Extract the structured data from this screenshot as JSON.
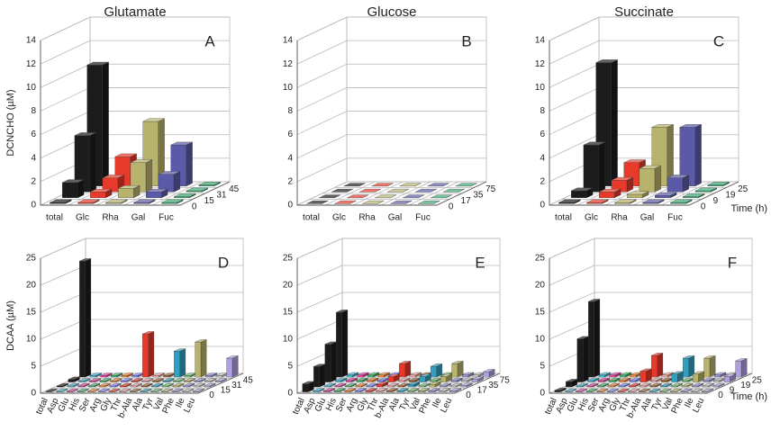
{
  "chart_data": [
    {
      "type": "bar3d",
      "title": "Glutamate",
      "label": "A",
      "ylabel": "DCNCHO (µM)",
      "categories": [
        "total",
        "Glc",
        "Rha",
        "Gal",
        "Fuc"
      ],
      "colors": [
        "#1c1c1c",
        "#e8392a",
        "#b8b36c",
        "#5a5aa8",
        "#3aa872"
      ],
      "series": [
        {
          "name": "0",
          "values": [
            0.1,
            0.1,
            0.1,
            0.1,
            0.1
          ]
        },
        {
          "name": "15",
          "values": [
            1.3,
            0.5,
            0.8,
            0.5,
            0.1
          ]
        },
        {
          "name": "31",
          "values": [
            4.8,
            1.2,
            2.5,
            1.5,
            0.1
          ]
        },
        {
          "name": "45",
          "values": [
            10.3,
            2.5,
            5.5,
            3.5,
            0.1
          ]
        }
      ],
      "ylim": [
        0,
        14
      ],
      "yticks": [
        0,
        2,
        4,
        6,
        8,
        10,
        12,
        14
      ]
    },
    {
      "type": "bar3d",
      "title": "Glucose",
      "label": "B",
      "categories": [
        "total",
        "Glc",
        "Rha",
        "Gal",
        "Fuc"
      ],
      "colors": [
        "#1c1c1c",
        "#e8392a",
        "#b8b36c",
        "#5a5aa8",
        "#3aa872"
      ],
      "series": [
        {
          "name": "0",
          "values": [
            0,
            0,
            0,
            0,
            0
          ]
        },
        {
          "name": "17",
          "values": [
            0,
            0,
            0,
            0,
            0
          ]
        },
        {
          "name": "35",
          "values": [
            0,
            0,
            0,
            0,
            0
          ]
        },
        {
          "name": "75",
          "values": [
            0,
            0,
            0,
            0,
            0
          ]
        }
      ],
      "ylim": [
        0,
        14
      ],
      "yticks": [
        0,
        2,
        4,
        6,
        8,
        10,
        12,
        14
      ]
    },
    {
      "type": "bar3d",
      "title": "Succinate",
      "label": "C",
      "zlabel": "Time (h)",
      "categories": [
        "total",
        "Glc",
        "Rha",
        "Gal",
        "Fuc"
      ],
      "colors": [
        "#1c1c1c",
        "#e8392a",
        "#b8b36c",
        "#5a5aa8",
        "#3aa872"
      ],
      "series": [
        {
          "name": "0",
          "values": [
            0.1,
            0.1,
            0.1,
            0.1,
            0.1
          ]
        },
        {
          "name": "9",
          "values": [
            0.6,
            0.5,
            0.3,
            0.2,
            0.1
          ]
        },
        {
          "name": "19",
          "values": [
            4,
            1,
            2,
            1.2,
            0.1
          ]
        },
        {
          "name": "25",
          "values": [
            10.5,
            2,
            5,
            5,
            0.1
          ]
        }
      ],
      "ylim": [
        0,
        14
      ],
      "yticks": [
        0,
        2,
        4,
        6,
        8,
        10,
        12,
        14
      ]
    },
    {
      "type": "bar3d",
      "label": "D",
      "ylabel": "DCAA (µM)",
      "categories": [
        "total",
        "Asp",
        "Glu",
        "His",
        "Ser",
        "Arg",
        "Gly",
        "Thr",
        "b-Ala",
        "Ala",
        "Tyr",
        "Val",
        "Phe",
        "Ile",
        "Leu"
      ],
      "colors": [
        "#1c1c1c",
        "#3fb0d0",
        "#e040a0",
        "#40b060",
        "#f08030",
        "#8080ff",
        "#e8392a",
        "#f0a0a0",
        "#a06030",
        "#30a0c0",
        "#70c070",
        "#b8b36c",
        "#9090d0",
        "#c0c0c0",
        "#b0a0e0"
      ],
      "series": [
        {
          "name": "0",
          "values": [
            0.1,
            0.1,
            0.1,
            0.1,
            0.1,
            0.1,
            0.1,
            0.1,
            0.1,
            0.1,
            0.1,
            0.1,
            0.1,
            0.1,
            0.1
          ]
        },
        {
          "name": "15",
          "values": [
            0.2,
            0.2,
            0.2,
            0.2,
            0.2,
            0.2,
            0.2,
            0.2,
            0.2,
            0.2,
            0.2,
            0.2,
            0.2,
            0.2,
            0.2
          ]
        },
        {
          "name": "31",
          "values": [
            0.5,
            0.2,
            0.2,
            0.2,
            0.2,
            0.2,
            0.2,
            0.2,
            0.2,
            0.2,
            0.2,
            0.2,
            0.2,
            0.2,
            0.2
          ]
        },
        {
          "name": "45",
          "values": [
            21.5,
            0.3,
            0.3,
            0.3,
            0.3,
            0.3,
            8,
            0.3,
            0.3,
            4.8,
            0.3,
            6.5,
            0.3,
            0.3,
            3.5
          ]
        }
      ],
      "ylim": [
        0,
        25
      ],
      "yticks": [
        0,
        5,
        10,
        15,
        20,
        25
      ]
    },
    {
      "type": "bar3d",
      "label": "E",
      "categories": [
        "total",
        "Asp",
        "Glu",
        "His",
        "Ser",
        "Arg",
        "Gly",
        "Thr",
        "b-Ala",
        "Ala",
        "Tyr",
        "Val",
        "Phe",
        "Ile",
        "Leu"
      ],
      "colors": [
        "#1c1c1c",
        "#3fb0d0",
        "#e040a0",
        "#40b060",
        "#f08030",
        "#8080ff",
        "#e8392a",
        "#f0a0a0",
        "#a06030",
        "#30a0c0",
        "#70c070",
        "#b8b36c",
        "#9090d0",
        "#c0c0c0",
        "#b0a0e0"
      ],
      "series": [
        {
          "name": "0",
          "values": [
            1.5,
            0.2,
            0.2,
            0.2,
            0.2,
            0.2,
            0.2,
            0.2,
            0.2,
            0.2,
            0.2,
            0.2,
            0.2,
            0.2,
            0.2
          ]
        },
        {
          "name": "17",
          "values": [
            3.8,
            0.2,
            0.2,
            0.2,
            0.2,
            0.2,
            0.5,
            0.2,
            0.2,
            0.5,
            0.2,
            0.5,
            0.2,
            0.2,
            0.3
          ]
        },
        {
          "name": "35",
          "values": [
            7,
            0.3,
            0.3,
            0.3,
            0.3,
            0.3,
            1,
            0.3,
            0.3,
            1,
            0.3,
            1,
            0.3,
            0.3,
            0.5
          ]
        },
        {
          "name": "75",
          "values": [
            12,
            0.4,
            0.4,
            0.4,
            0.4,
            0.4,
            2.5,
            0.4,
            0.4,
            2,
            0.4,
            2.5,
            0.4,
            0.4,
            1
          ]
        }
      ],
      "ylim": [
        0,
        25
      ],
      "yticks": [
        0,
        5,
        10,
        15,
        20,
        25
      ]
    },
    {
      "type": "bar3d",
      "label": "F",
      "zlabel": "Time (h)",
      "categories": [
        "total",
        "Asp",
        "Glu",
        "His",
        "Ser",
        "Arg",
        "Gly",
        "Thr",
        "b-Ala",
        "Ala",
        "Tyr",
        "Val",
        "Phe",
        "Ile",
        "Leu"
      ],
      "colors": [
        "#1c1c1c",
        "#3fb0d0",
        "#e040a0",
        "#40b060",
        "#f08030",
        "#8080ff",
        "#e8392a",
        "#f0a0a0",
        "#a06030",
        "#30a0c0",
        "#70c070",
        "#b8b36c",
        "#9090d0",
        "#c0c0c0",
        "#b0a0e0"
      ],
      "series": [
        {
          "name": "0",
          "values": [
            0.3,
            0.1,
            0.1,
            0.1,
            0.1,
            0.1,
            0.1,
            0.1,
            0.1,
            0.1,
            0.1,
            0.1,
            0.1,
            0.1,
            0.1
          ]
        },
        {
          "name": "9",
          "values": [
            1,
            0.2,
            0.2,
            0.2,
            0.2,
            0.2,
            0.2,
            0.2,
            0.2,
            0.2,
            0.2,
            0.2,
            0.2,
            0.2,
            0.2
          ]
        },
        {
          "name": "19",
          "values": [
            8,
            0.3,
            0.3,
            0.3,
            0.3,
            0.3,
            2,
            0.3,
            0.3,
            1.5,
            0.3,
            1.5,
            0.3,
            0.3,
            1
          ]
        },
        {
          "name": "25",
          "values": [
            14,
            0.4,
            0.4,
            0.4,
            0.4,
            0.4,
            4,
            0.4,
            0.4,
            3.5,
            0.4,
            3.5,
            0.4,
            0.4,
            3
          ]
        }
      ],
      "ylim": [
        0,
        25
      ],
      "yticks": [
        0,
        5,
        10,
        15,
        20,
        25
      ]
    }
  ]
}
